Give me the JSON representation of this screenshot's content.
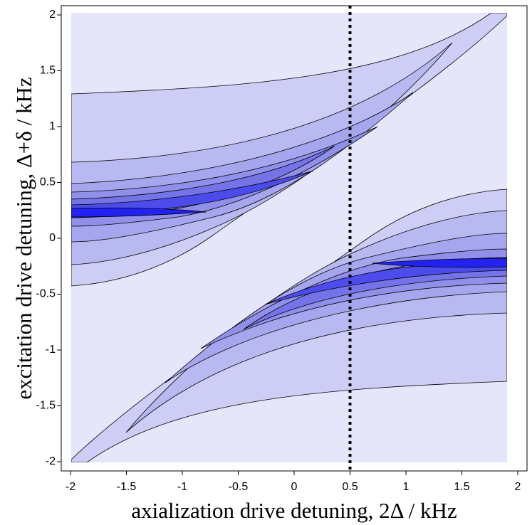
{
  "chart_data": {
    "type": "contour",
    "xlabel": "axialization drive detuning, 2Δ / kHz",
    "ylabel": "excitation drive detuning, Δ+δ / kHz",
    "xlim": [
      -2,
      2
    ],
    "ylim": [
      -2,
      2
    ],
    "xticks": [
      -2,
      -1.5,
      -1,
      -0.5,
      0,
      0.5,
      1,
      1.5,
      2
    ],
    "yticks": [
      -2,
      -1.5,
      -1,
      -0.5,
      0,
      0.5,
      1,
      1.5,
      2
    ],
    "vlines": [
      0.5
    ]
  }
}
